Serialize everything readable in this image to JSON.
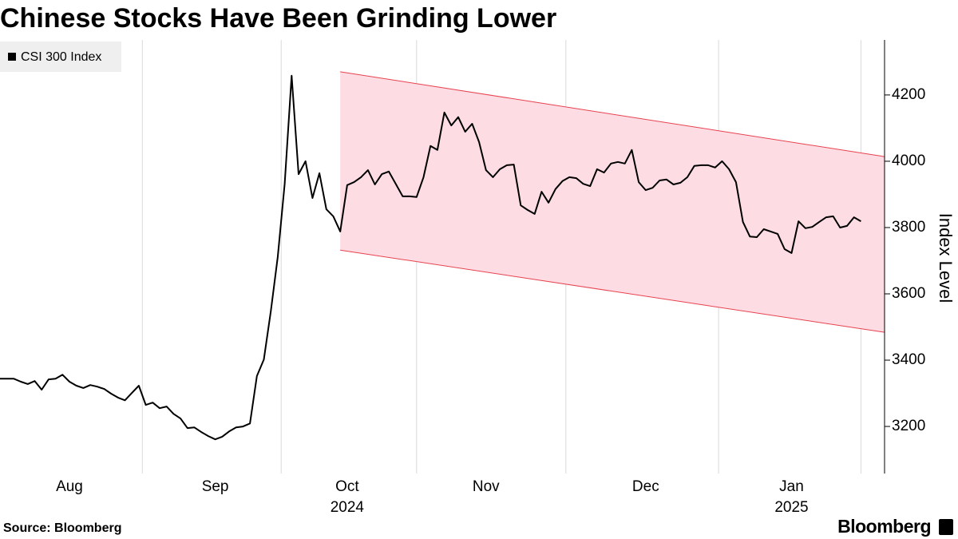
{
  "chart_data": {
    "type": "line",
    "title": "Chinese Stocks Have Been Grinding Lower",
    "y_axis_label": "Index Level",
    "source": "Source: Bloomberg",
    "brand": "Bloomberg",
    "categories": [
      null,
      null,
      null,
      null,
      null,
      null,
      null,
      null,
      null,
      null,
      "Aug",
      null,
      null,
      null,
      null,
      null,
      null,
      null,
      null,
      null,
      null,
      null,
      null,
      null,
      null,
      null,
      null,
      null,
      null,
      null,
      null,
      "Sep",
      null,
      null,
      null,
      null,
      null,
      null,
      null,
      null,
      null,
      null,
      null,
      null,
      null,
      null,
      null,
      null,
      null,
      null,
      [
        "Oct",
        "2024"
      ],
      null,
      null,
      null,
      null,
      null,
      null,
      null,
      null,
      null,
      null,
      null,
      null,
      null,
      null,
      null,
      null,
      null,
      null,
      null,
      "Nov",
      null,
      null,
      null,
      null,
      null,
      null,
      null,
      null,
      null,
      null,
      null,
      null,
      null,
      null,
      null,
      null,
      null,
      null,
      null,
      null,
      null,
      null,
      "Dec",
      null,
      null,
      null,
      null,
      null,
      null,
      null,
      null,
      null,
      null,
      null,
      null,
      null,
      null,
      null,
      null,
      null,
      null,
      null,
      null,
      [
        "Jan",
        "2025"
      ],
      null,
      null,
      null,
      null,
      null,
      null,
      null,
      null,
      null,
      null
    ],
    "series": [
      {
        "name": "CSI 300 Index",
        "color": "#000000",
        "values": [
          3344,
          3344,
          3344,
          3335,
          3328,
          3337,
          3311,
          3342,
          3344,
          3356,
          3335,
          3323,
          3316,
          3325,
          3320,
          3313,
          3299,
          3287,
          3279,
          3301,
          3323,
          3265,
          3272,
          3255,
          3260,
          3238,
          3224,
          3195,
          3197,
          3183,
          3171,
          3161,
          3169,
          3185,
          3197,
          3200,
          3209,
          3352,
          3402,
          3547,
          3711,
          3932,
          4258,
          3961,
          4000,
          3889,
          3964,
          3855,
          3834,
          3788,
          3928,
          3937,
          3952,
          3973,
          3930,
          3961,
          3969,
          3932,
          3894,
          3894,
          3892,
          3952,
          4046,
          4034,
          4147,
          4108,
          4133,
          4089,
          4113,
          4058,
          3973,
          3952,
          3976,
          3988,
          3990,
          3867,
          3853,
          3841,
          3908,
          3875,
          3916,
          3940,
          3952,
          3949,
          3932,
          3925,
          3976,
          3966,
          3993,
          3998,
          3993,
          4034,
          3937,
          3913,
          3920,
          3942,
          3945,
          3930,
          3935,
          3952,
          3986,
          3988,
          3988,
          3981,
          4000,
          3976,
          3937,
          3817,
          3773,
          3771,
          3795,
          3788,
          3781,
          3735,
          3723,
          3819,
          3798,
          3802,
          3817,
          3831,
          3834,
          3800,
          3805,
          3831,
          3819
        ]
      }
    ],
    "channel": {
      "x": [
        49,
        127.4
      ],
      "upper": [
        4270,
        4014
      ],
      "lower": [
        3732,
        3484
      ],
      "fill": "#fddde3",
      "stroke": "#e8424f"
    },
    "xlim": [
      0,
      127.4
    ],
    "ylim": [
      3058,
      4366
    ],
    "yticks": [
      3200,
      3400,
      3600,
      3800,
      4000,
      4200
    ],
    "vertical_grid": true
  }
}
